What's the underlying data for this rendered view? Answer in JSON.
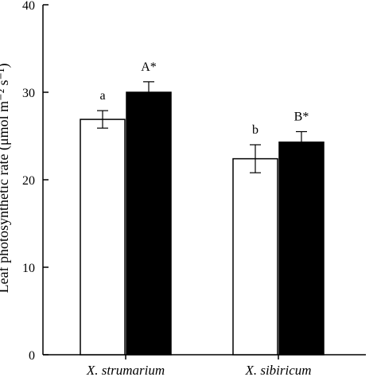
{
  "chart_data": {
    "type": "bar",
    "title": "",
    "xlabel": "",
    "ylabel": "Leaf photosynthetic rate (μmol m⁻² s⁻¹)",
    "ylim": [
      0,
      40
    ],
    "yticks": [
      0,
      10,
      20,
      30,
      40
    ],
    "grid": false,
    "categories": [
      "X. strumarium",
      "X. sibiricum"
    ],
    "series": [
      {
        "color": "#ffffff",
        "values": [
          26.9,
          22.4
        ],
        "errors": [
          1.0,
          1.6
        ]
      },
      {
        "color": "#000000",
        "values": [
          30.0,
          24.3
        ],
        "errors": [
          1.2,
          1.2
        ]
      }
    ],
    "annotations": [
      {
        "category": 0,
        "series": 0,
        "text": "a"
      },
      {
        "category": 0,
        "series": 1,
        "text": "A*"
      },
      {
        "category": 1,
        "series": 0,
        "text": "b"
      },
      {
        "category": 1,
        "series": 1,
        "text": "B*"
      }
    ]
  }
}
